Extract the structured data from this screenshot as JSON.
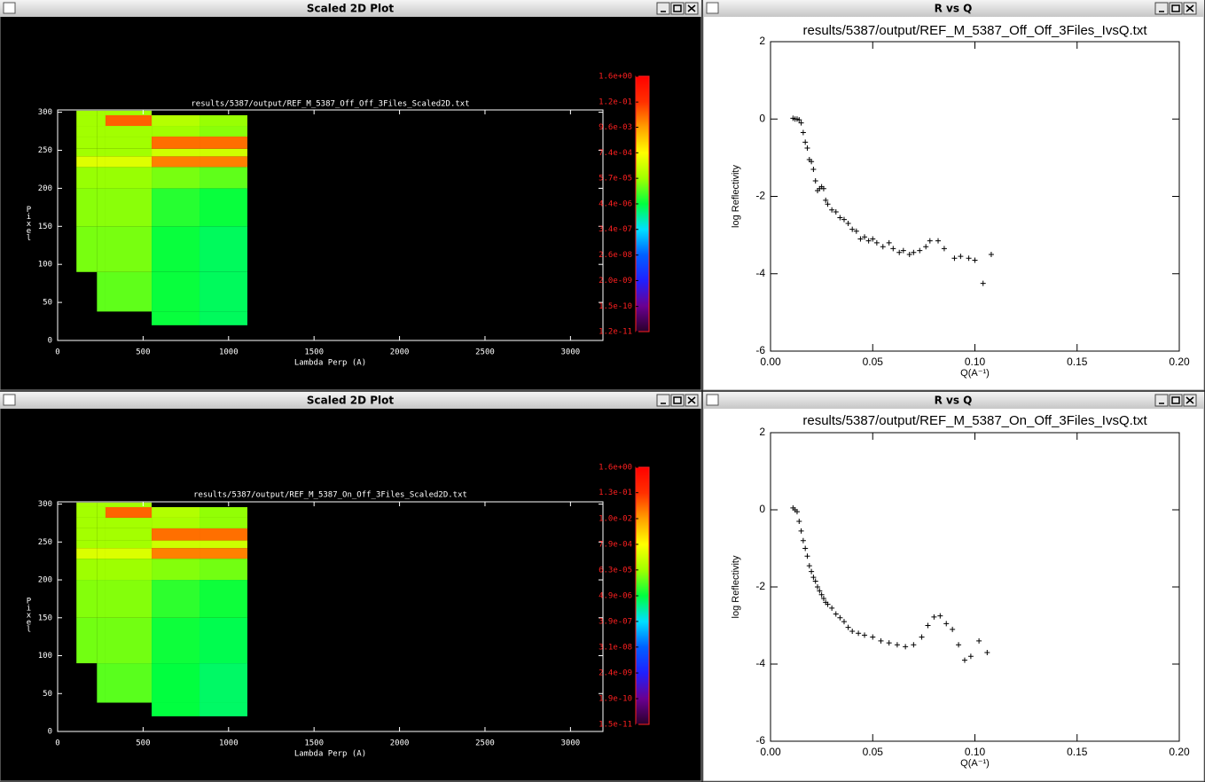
{
  "windows": [
    {
      "title": "Scaled 2D Plot"
    },
    {
      "title": "R vs Q"
    },
    {
      "title": "Scaled 2D Plot"
    },
    {
      "title": "R vs Q"
    }
  ],
  "chart_data": [
    {
      "type": "heatmap",
      "title": "results/5387/output/REF_M_5387_Off_Off_3Files_Scaled2D.txt",
      "x_label": "Lambda Perp (A)",
      "y_label": "Pixel",
      "xbins": [
        110,
        230,
        280,
        550,
        830,
        1110
      ],
      "ybins": [
        20,
        38,
        90,
        150,
        200,
        228,
        242,
        252,
        268,
        282,
        296,
        302
      ],
      "z": [
        [
          null,
          null,
          null,
          5e-06,
          3e-06
        ],
        [
          null,
          2e-05,
          2e-05,
          5e-06,
          3e-06
        ],
        [
          3e-05,
          3e-05,
          3e-05,
          5e-06,
          3e-06
        ],
        [
          4e-05,
          4e-05,
          4e-05,
          8e-06,
          5e-06
        ],
        [
          5e-05,
          5e-05,
          5e-05,
          3e-05,
          2e-05
        ],
        [
          0.0003,
          0.0003,
          0.0003,
          0.02,
          0.02
        ],
        [
          6e-05,
          6e-05,
          6e-05,
          0.0002,
          0.0002
        ],
        [
          6e-05,
          6e-05,
          6e-05,
          0.03,
          0.03
        ],
        [
          6e-05,
          6e-05,
          6e-05,
          6e-05,
          4e-05
        ],
        [
          6e-05,
          6e-05,
          0.04,
          0.0001,
          5e-05
        ],
        [
          6e-05,
          6e-05,
          6e-05,
          null,
          null
        ]
      ],
      "xlim": [
        0,
        3190
      ],
      "xticks": [
        0,
        500,
        1000,
        1500,
        2000,
        2500,
        3000
      ],
      "ylim": [
        0,
        303
      ],
      "yticks": [
        0,
        50,
        100,
        150,
        200,
        250,
        300
      ],
      "log_color_scale": true,
      "zlim": [
        1.2e-11,
        1.6
      ],
      "zticks": [
        {
          "value": 1.2e-11,
          "label": "1.2e-11"
        },
        {
          "value": 1.5e-10,
          "label": "1.5e-10"
        },
        {
          "value": 2e-09,
          "label": "2.0e-09"
        },
        {
          "value": 2.6e-08,
          "label": "2.6e-08"
        },
        {
          "value": 3.4e-07,
          "label": "3.4e-07"
        },
        {
          "value": 4.4e-06,
          "label": "4.4e-06"
        },
        {
          "value": 5.7e-05,
          "label": "5.7e-05"
        },
        {
          "value": 0.00074,
          "label": "7.4e-04"
        },
        {
          "value": 0.0096,
          "label": "9.6e-03"
        },
        {
          "value": 0.12,
          "label": "1.2e-01"
        },
        {
          "value": 1.6,
          "label": "1.6e+00"
        }
      ],
      "colormap": [
        "#2a002a",
        "#6a0090",
        "#2020ff",
        "#0060ff",
        "#00e0ff",
        "#00ff40",
        "#a0ff00",
        "#ffff00",
        "#ffa000",
        "#ff3000",
        "#ff0000"
      ]
    },
    {
      "type": "scatter",
      "title": "results/5387/output/REF_M_5387_Off_Off_3Files_IvsQ.txt",
      "x_label": "Q(A⁻¹)",
      "y_label": "log Reflectivity",
      "color": "#000000",
      "x": [
        0.011,
        0.012,
        0.013,
        0.014,
        0.015,
        0.016,
        0.017,
        0.018,
        0.019,
        0.02,
        0.021,
        0.022,
        0.023,
        0.024,
        0.025,
        0.026,
        0.027,
        0.028,
        0.03,
        0.032,
        0.034,
        0.036,
        0.038,
        0.04,
        0.042,
        0.044,
        0.046,
        0.048,
        0.05,
        0.052,
        0.055,
        0.058,
        0.06,
        0.063,
        0.065,
        0.068,
        0.07,
        0.073,
        0.076,
        0.078,
        0.082,
        0.085,
        0.09,
        0.093,
        0.097,
        0.1,
        0.104,
        0.108
      ],
      "values": [
        0.02,
        0.0,
        0.0,
        -0.02,
        -0.1,
        -0.35,
        -0.6,
        -0.75,
        -1.05,
        -1.1,
        -1.3,
        -1.6,
        -1.85,
        -1.8,
        -1.75,
        -1.8,
        -2.1,
        -2.2,
        -2.35,
        -2.4,
        -2.55,
        -2.6,
        -2.7,
        -2.85,
        -2.9,
        -3.1,
        -3.05,
        -3.15,
        -3.1,
        -3.2,
        -3.3,
        -3.2,
        -3.35,
        -3.45,
        -3.4,
        -3.5,
        -3.45,
        -3.4,
        -3.3,
        -3.15,
        -3.15,
        -3.35,
        -3.6,
        -3.55,
        -3.6,
        -3.65,
        -4.25,
        -3.5
      ],
      "xlim": [
        0,
        0.2
      ],
      "xticks": [
        {
          "value": 0,
          "label": "0.00"
        },
        0.05,
        {
          "value": 0.1,
          "label": "0.10"
        },
        0.15,
        {
          "value": 0.2,
          "label": "0.20"
        }
      ],
      "ylim": [
        -6,
        2
      ],
      "yticks": [
        -6,
        -4,
        -2,
        0,
        2
      ]
    },
    {
      "type": "heatmap",
      "title": "results/5387/output/REF_M_5387_On_Off_3Files_Scaled2D.txt",
      "x_label": "Lambda Perp (A)",
      "y_label": "Pixel",
      "xbins": [
        110,
        230,
        280,
        550,
        830,
        1110
      ],
      "ybins": [
        20,
        38,
        90,
        150,
        200,
        228,
        242,
        252,
        268,
        282,
        296,
        302
      ],
      "z": [
        [
          null,
          null,
          null,
          5e-06,
          3e-06
        ],
        [
          null,
          2e-05,
          2e-05,
          5e-06,
          3e-06
        ],
        [
          3e-05,
          3e-05,
          3e-05,
          6e-06,
          4e-06
        ],
        [
          4e-05,
          4e-05,
          4e-05,
          1e-05,
          6e-06
        ],
        [
          6e-05,
          6e-05,
          6e-05,
          4e-05,
          3e-05
        ],
        [
          0.0003,
          0.0003,
          0.0003,
          0.02,
          0.02
        ],
        [
          7e-05,
          7e-05,
          7e-05,
          0.0002,
          0.0002
        ],
        [
          7e-05,
          7e-05,
          7e-05,
          0.03,
          0.03
        ],
        [
          7e-05,
          7e-05,
          7e-05,
          8e-05,
          5e-05
        ],
        [
          7e-05,
          7e-05,
          0.04,
          0.0001,
          5e-05
        ],
        [
          7e-05,
          7e-05,
          7e-05,
          null,
          null
        ]
      ],
      "xlim": [
        0,
        3190
      ],
      "xticks": [
        0,
        500,
        1000,
        1500,
        2000,
        2500,
        3000
      ],
      "ylim": [
        0,
        303
      ],
      "yticks": [
        0,
        50,
        100,
        150,
        200,
        250,
        300
      ],
      "log_color_scale": true,
      "zlim": [
        1.5e-11,
        1.6
      ],
      "zticks": [
        {
          "value": 1.5e-11,
          "label": "1.5e-11"
        },
        {
          "value": 1.9e-10,
          "label": "1.9e-10"
        },
        {
          "value": 2.4e-09,
          "label": "2.4e-09"
        },
        {
          "value": 3.1e-08,
          "label": "3.1e-08"
        },
        {
          "value": 3.9e-07,
          "label": "3.9e-07"
        },
        {
          "value": 4.9e-06,
          "label": "4.9e-06"
        },
        {
          "value": 6.3e-05,
          "label": "6.3e-05"
        },
        {
          "value": 0.00079,
          "label": "7.9e-04"
        },
        {
          "value": 0.01,
          "label": "1.0e-02"
        },
        {
          "value": 0.13,
          "label": "1.3e-01"
        },
        {
          "value": 1.6,
          "label": "1.6e+00"
        }
      ],
      "colormap": [
        "#2a002a",
        "#6a0090",
        "#2020ff",
        "#0060ff",
        "#00e0ff",
        "#00ff40",
        "#a0ff00",
        "#ffff00",
        "#ffa000",
        "#ff3000",
        "#ff0000"
      ]
    },
    {
      "type": "scatter",
      "title": "results/5387/output/REF_M_5387_On_Off_3Files_IvsQ.txt",
      "x_label": "Q(A⁻¹)",
      "y_label": "log Reflectivity",
      "color": "#000000",
      "x": [
        0.011,
        0.012,
        0.013,
        0.014,
        0.015,
        0.016,
        0.017,
        0.018,
        0.019,
        0.02,
        0.021,
        0.022,
        0.023,
        0.024,
        0.025,
        0.026,
        0.027,
        0.028,
        0.03,
        0.032,
        0.034,
        0.036,
        0.038,
        0.04,
        0.043,
        0.046,
        0.05,
        0.054,
        0.058,
        0.062,
        0.066,
        0.07,
        0.074,
        0.077,
        0.08,
        0.083,
        0.086,
        0.089,
        0.092,
        0.095,
        0.098,
        0.102,
        0.106
      ],
      "values": [
        0.05,
        0.0,
        -0.05,
        -0.3,
        -0.55,
        -0.8,
        -1.0,
        -1.2,
        -1.45,
        -1.6,
        -1.75,
        -1.85,
        -2.0,
        -2.1,
        -2.2,
        -2.3,
        -2.4,
        -2.45,
        -2.55,
        -2.7,
        -2.8,
        -2.9,
        -3.05,
        -3.15,
        -3.2,
        -3.25,
        -3.3,
        -3.4,
        -3.45,
        -3.5,
        -3.55,
        -3.5,
        -3.3,
        -3.0,
        -2.78,
        -2.75,
        -2.95,
        -3.1,
        -3.5,
        -3.9,
        -3.8,
        -3.4,
        -3.7
      ],
      "xlim": [
        0,
        0.2
      ],
      "xticks": [
        {
          "value": 0,
          "label": "0.00"
        },
        0.05,
        {
          "value": 0.1,
          "label": "0.10"
        },
        0.15,
        {
          "value": 0.2,
          "label": "0.20"
        }
      ],
      "ylim": [
        -6,
        2
      ],
      "yticks": [
        -6,
        -4,
        -2,
        0,
        2
      ]
    }
  ]
}
